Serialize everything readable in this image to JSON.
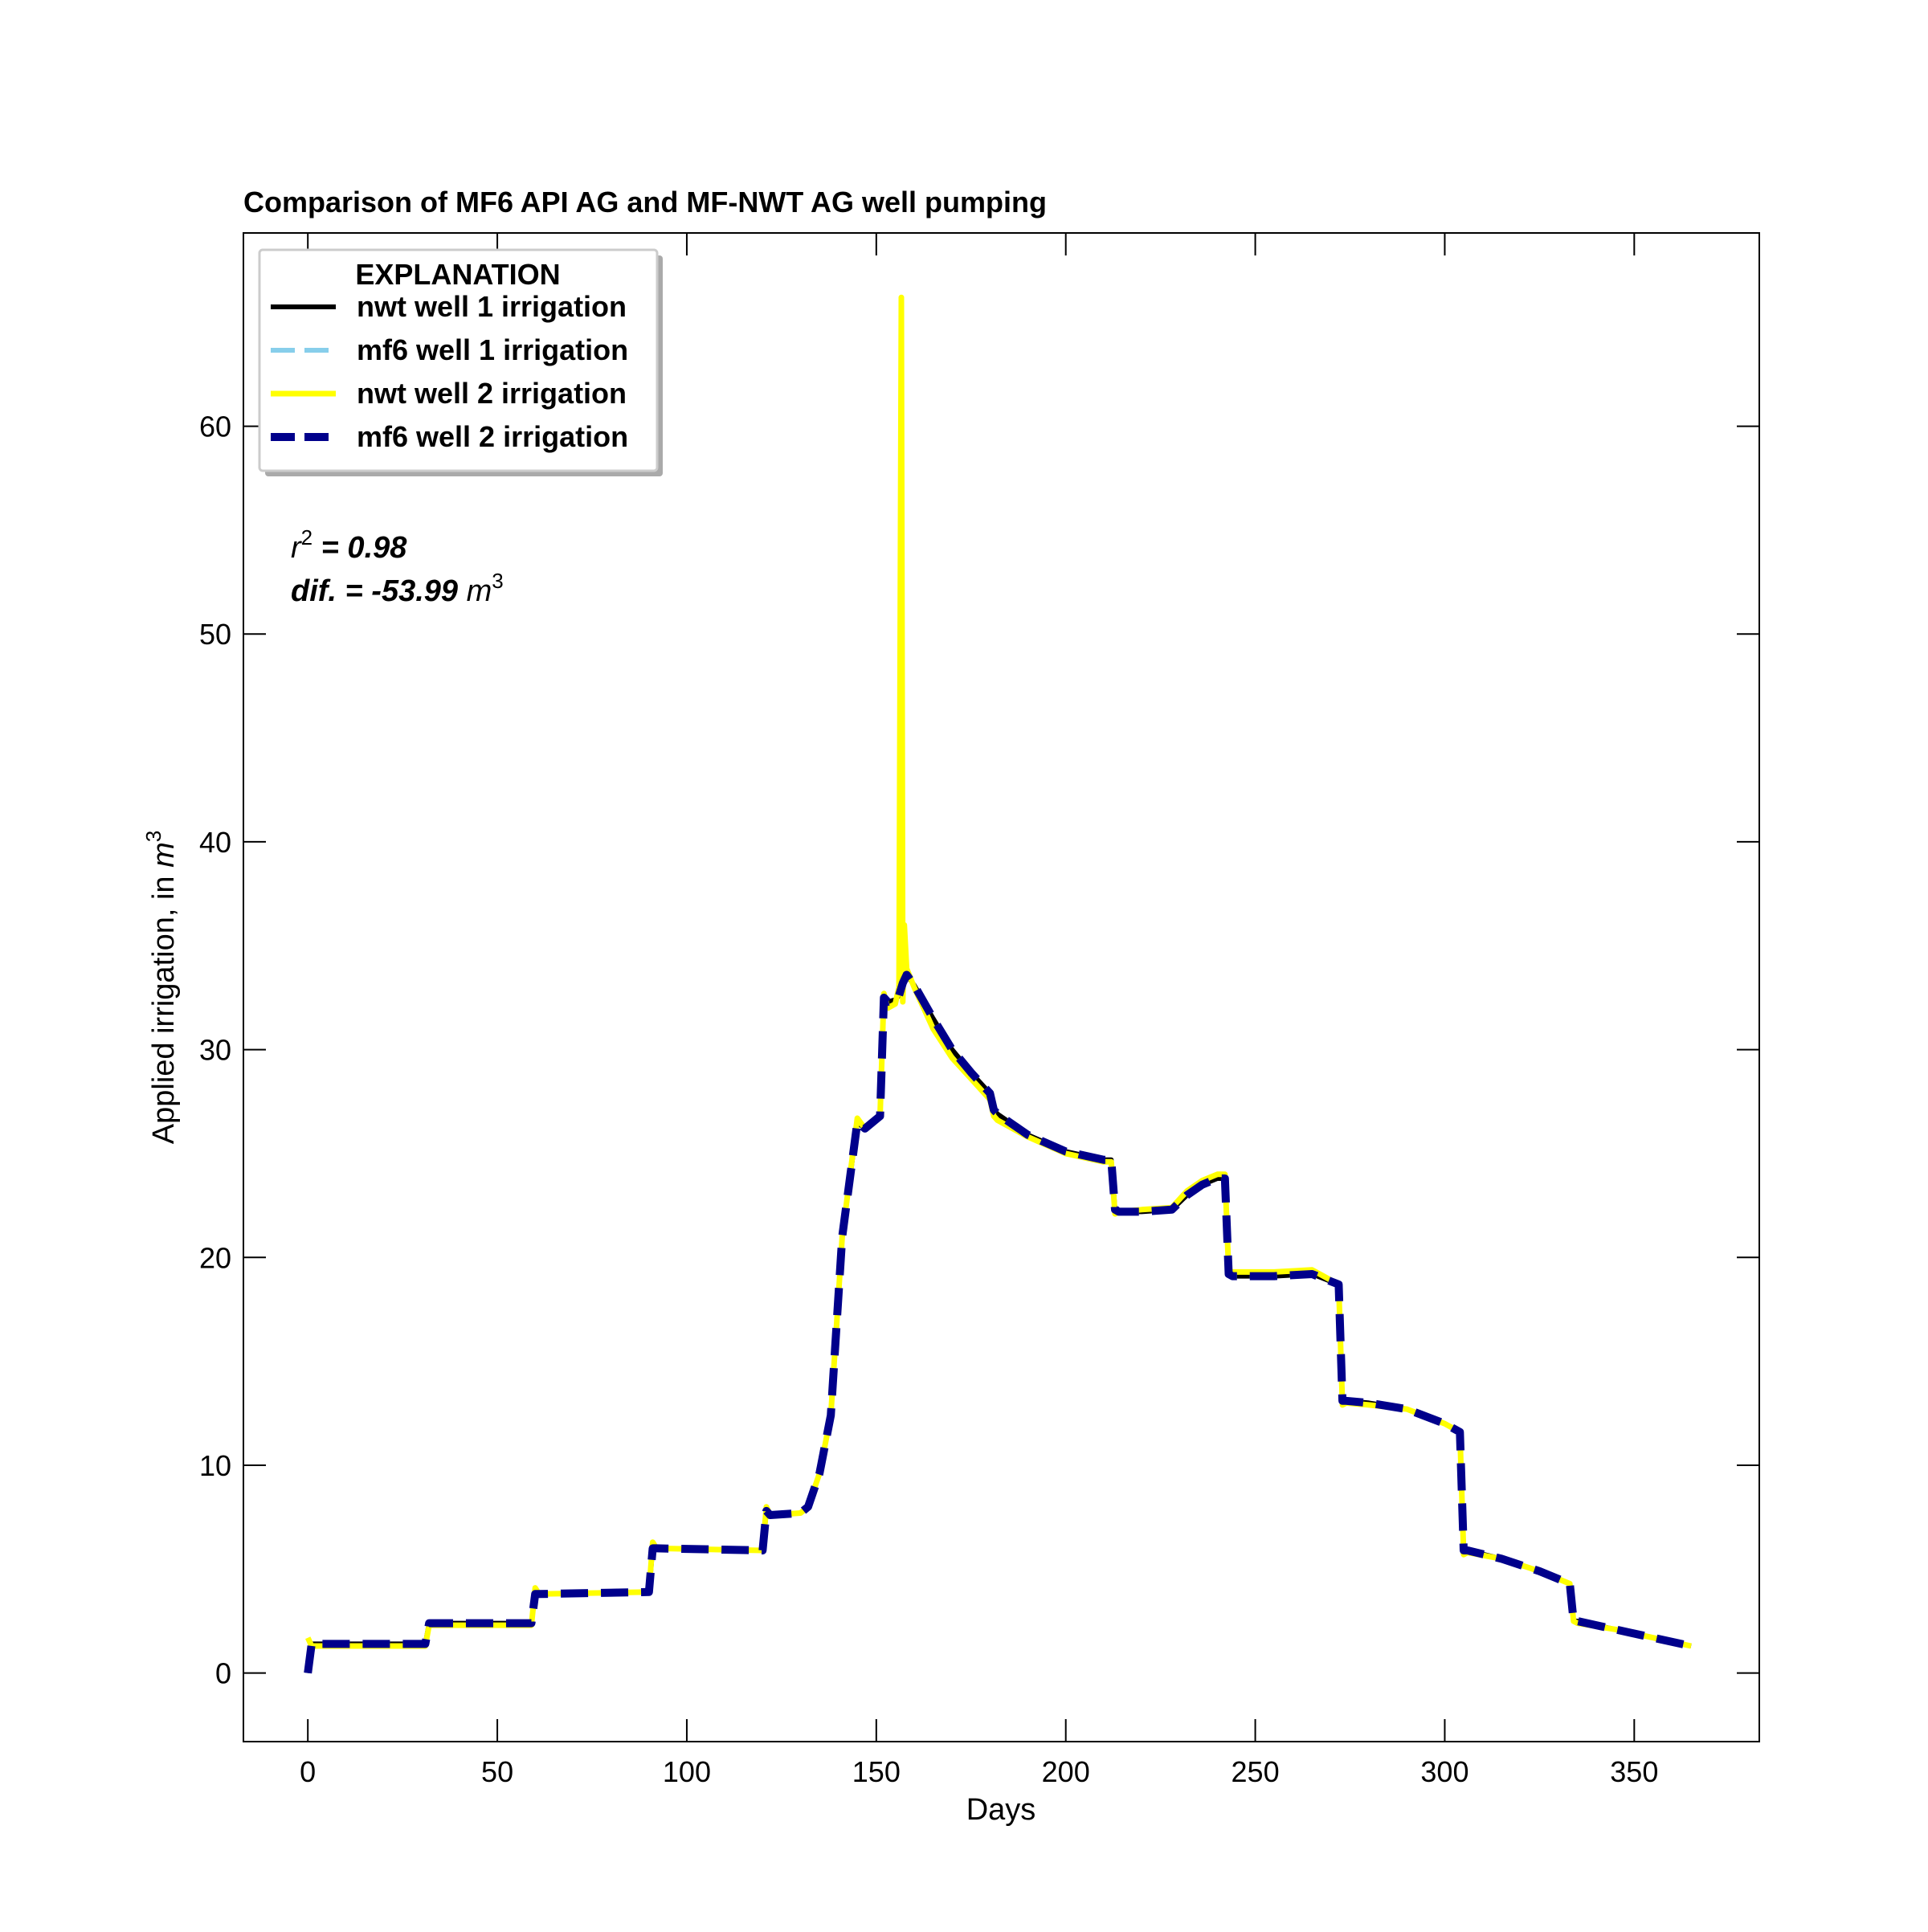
{
  "chart_data": {
    "type": "line",
    "title": "Comparison of MF6 API AG and MF-NWT AG well pumping",
    "xlabel": "Days",
    "ylabel_prefix": "Applied irrigation, in ",
    "ylabel_unit_base": "m",
    "ylabel_unit_exp": "3",
    "xlim": [
      -17,
      383
    ],
    "ylim": [
      -3.3,
      69.3
    ],
    "xticks": [
      0,
      50,
      100,
      150,
      200,
      250,
      300,
      350
    ],
    "yticks": [
      0,
      10,
      20,
      30,
      40,
      50,
      60
    ],
    "grid": false,
    "legend": {
      "title": "EXPLANATION",
      "placement": "upper-left",
      "entries": [
        {
          "label": "nwt well 1 irrigation",
          "color": "#000000",
          "style": "solid"
        },
        {
          "label": "mf6 well 1 irrigation",
          "color": "#87ceeb",
          "style": "dashed"
        },
        {
          "label": "nwt well 2 irrigation",
          "color": "#ffff00",
          "style": "solid"
        },
        {
          "label": "mf6 well 2 irrigation",
          "color": "#00008b",
          "style": "dashed"
        }
      ]
    },
    "annotations": {
      "r2_symbol": "r",
      "r2_exp": "2",
      "r2_value": " = 0.98",
      "dif_label": "dif. = -53.99 ",
      "dif_unit_base": "m",
      "dif_unit_exp": "3"
    },
    "series": [
      {
        "name": "nwt well 1 irrigation",
        "color": "#000000",
        "style": "solid",
        "x": [
          0,
          1,
          2,
          30,
          31,
          32,
          59,
          60,
          61,
          90,
          91,
          92,
          120,
          121,
          122,
          130,
          132,
          135,
          138,
          141,
          145,
          147,
          149,
          151,
          152,
          153,
          155,
          156,
          157,
          158,
          160,
          165,
          170,
          175,
          180,
          181,
          182,
          190,
          200,
          210,
          212,
          213,
          214,
          220,
          228,
          232,
          236,
          240,
          242,
          243,
          244,
          250,
          255,
          265,
          272,
          273,
          274,
          280,
          290,
          300,
          304,
          305,
          306,
          315,
          325,
          333,
          334,
          335,
          345,
          355,
          365
        ],
        "y": [
          0,
          1.4,
          1.4,
          1.4,
          1.4,
          2.4,
          2.4,
          3.8,
          3.8,
          3.9,
          6.0,
          6.0,
          5.9,
          7.8,
          7.6,
          7.7,
          8.0,
          9.6,
          12.4,
          21.0,
          26.5,
          26.2,
          26.5,
          26.8,
          32.5,
          32.3,
          32.4,
          32.6,
          33.2,
          33.6,
          33.1,
          31.5,
          30.0,
          28.9,
          27.9,
          27.1,
          26.9,
          25.9,
          25.1,
          24.7,
          24.7,
          22.3,
          22.2,
          22.2,
          22.3,
          23.0,
          23.5,
          23.8,
          23.8,
          19.2,
          19.1,
          19.1,
          19.1,
          19.2,
          18.7,
          13.1,
          13.1,
          13.0,
          12.7,
          12.0,
          11.6,
          5.9,
          5.9,
          5.5,
          4.9,
          4.3,
          2.5,
          2.5,
          2.1,
          1.7,
          1.3
        ]
      },
      {
        "name": "mf6 well 1 irrigation",
        "color": "#87ceeb",
        "style": "dashed",
        "x": [
          0,
          1,
          2,
          30,
          31,
          32,
          59,
          60,
          61,
          90,
          91,
          92,
          120,
          121,
          122,
          130,
          132,
          135,
          138,
          141,
          145,
          147,
          149,
          151,
          152,
          153,
          155,
          156,
          157,
          158,
          160,
          165,
          170,
          175,
          180,
          181,
          182,
          190,
          200,
          210,
          212,
          213,
          214,
          220,
          228,
          232,
          236,
          240,
          242,
          243,
          244,
          250,
          255,
          265,
          272,
          273,
          274,
          280,
          290,
          300,
          304,
          305,
          306,
          315,
          325,
          333,
          334,
          335,
          345,
          355,
          365
        ],
        "y": [
          0,
          1.4,
          1.4,
          1.4,
          1.4,
          2.4,
          2.4,
          3.8,
          3.8,
          3.9,
          6.0,
          6.0,
          5.9,
          7.8,
          7.6,
          7.7,
          8.0,
          9.6,
          12.4,
          21.0,
          26.5,
          26.2,
          26.5,
          26.8,
          32.5,
          32.3,
          32.4,
          32.6,
          33.2,
          33.6,
          33.1,
          31.5,
          30.0,
          28.9,
          27.9,
          27.1,
          26.9,
          25.9,
          25.1,
          24.7,
          24.7,
          22.3,
          22.2,
          22.2,
          22.3,
          23.0,
          23.5,
          23.8,
          23.8,
          19.2,
          19.1,
          19.1,
          19.1,
          19.2,
          18.7,
          13.1,
          13.1,
          13.0,
          12.7,
          12.0,
          11.6,
          5.9,
          5.9,
          5.5,
          4.9,
          4.3,
          2.5,
          2.5,
          2.1,
          1.7,
          1.3
        ]
      },
      {
        "name": "nwt well 2 irrigation",
        "color": "#ffff00",
        "style": "solid",
        "x": [
          0,
          1,
          2,
          30,
          31,
          32,
          59,
          60,
          61,
          90,
          91,
          92,
          120,
          121,
          122,
          130,
          132,
          135,
          138,
          141,
          145,
          147,
          149,
          151,
          152,
          153,
          155,
          156,
          156.6,
          157,
          157.4,
          158,
          160,
          165,
          170,
          175,
          180,
          181,
          182,
          190,
          200,
          210,
          212,
          213,
          214,
          220,
          228,
          232,
          236,
          240,
          242,
          243,
          244,
          250,
          255,
          265,
          272,
          273,
          274,
          280,
          290,
          300,
          304,
          305,
          306,
          315,
          325,
          333,
          334,
          335,
          345,
          355,
          365
        ],
        "y": [
          1.7,
          1.3,
          1.3,
          1.3,
          1.3,
          2.3,
          2.3,
          4.1,
          3.8,
          3.9,
          6.3,
          6.0,
          5.9,
          8.0,
          7.6,
          7.7,
          8.0,
          9.6,
          12.4,
          21.0,
          26.7,
          26.2,
          26.5,
          26.8,
          32.7,
          32.0,
          32.2,
          33.0,
          66.2,
          32.3,
          36.0,
          33.9,
          33.0,
          31.0,
          29.6,
          28.6,
          27.6,
          26.8,
          26.6,
          25.8,
          25.0,
          24.6,
          24.6,
          22.1,
          22.2,
          22.3,
          22.4,
          23.2,
          23.7,
          24.0,
          24.0,
          19.3,
          19.3,
          19.3,
          19.3,
          19.4,
          18.7,
          12.9,
          13.0,
          12.9,
          12.7,
          12.0,
          11.6,
          5.7,
          5.8,
          5.5,
          4.9,
          4.3,
          2.5,
          2.4,
          2.1,
          1.7,
          1.3
        ]
      },
      {
        "name": "mf6 well 2 irrigation",
        "color": "#00008b",
        "style": "dashed",
        "x": [
          0,
          1,
          2,
          30,
          31,
          32,
          59,
          60,
          61,
          90,
          91,
          92,
          120,
          121,
          122,
          130,
          132,
          135,
          138,
          141,
          145,
          147,
          149,
          151,
          152,
          153,
          155,
          156,
          157,
          158,
          160,
          165,
          170,
          175,
          180,
          181,
          182,
          190,
          200,
          210,
          212,
          213,
          214,
          220,
          228,
          232,
          236,
          240,
          242,
          243,
          244,
          250,
          255,
          265,
          272,
          273,
          274,
          280,
          290,
          300,
          304,
          305,
          306,
          315,
          325,
          333,
          334,
          335,
          345,
          355,
          365
        ],
        "y": [
          0,
          1.4,
          1.4,
          1.4,
          1.4,
          2.4,
          2.4,
          3.8,
          3.8,
          3.9,
          6.0,
          6.0,
          5.9,
          7.8,
          7.6,
          7.7,
          8.0,
          9.6,
          12.4,
          21.0,
          26.5,
          26.2,
          26.5,
          26.8,
          32.5,
          32.3,
          32.4,
          32.6,
          33.2,
          33.6,
          33.1,
          31.5,
          30.0,
          28.9,
          27.9,
          27.1,
          26.9,
          25.9,
          25.1,
          24.7,
          24.7,
          22.3,
          22.2,
          22.2,
          22.3,
          23.0,
          23.5,
          23.8,
          23.8,
          19.2,
          19.1,
          19.1,
          19.1,
          19.2,
          18.7,
          13.1,
          13.1,
          13.0,
          12.7,
          12.0,
          11.6,
          5.9,
          5.9,
          5.5,
          4.9,
          4.3,
          2.5,
          2.5,
          2.1,
          1.7,
          1.3
        ]
      }
    ]
  }
}
